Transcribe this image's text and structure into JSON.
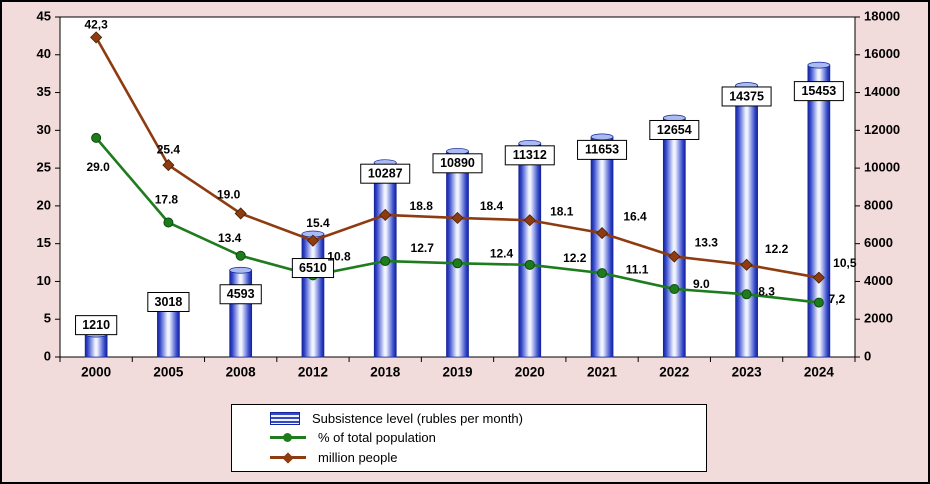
{
  "colors": {
    "background": "#F2DCDB",
    "plot_bg": "#FFFFFF",
    "bar": "#3347C9",
    "bar_edge": "#14249A",
    "bar_highlight": "#EFF3FF",
    "bar_cap": "#A9BBF0",
    "green_line": "#1E7B1E",
    "brown_line": "#8E3B10",
    "label_box_bg": "#FFFFFF",
    "text": "#000000"
  },
  "chart_data": {
    "type": "combo",
    "categories": [
      "2000",
      "2005",
      "2008",
      "2012",
      "2018",
      "2019",
      "2020",
      "2021",
      "2022",
      "2023",
      "2024"
    ],
    "series": [
      {
        "name": "Subsistence level (rubles per month)",
        "type": "bar",
        "axis": "right",
        "color": "#3347C9",
        "values": [
          1210,
          3018,
          4593,
          6510,
          10287,
          10890,
          11312,
          11653,
          12654,
          14375,
          15453
        ],
        "labels": [
          "1210",
          "3018",
          "4593",
          "6510",
          "10287",
          "10890",
          "11312",
          "11653",
          "12654",
          "14375",
          "15453"
        ]
      },
      {
        "name": "% of total population",
        "type": "line",
        "axis": "left",
        "marker": "circle",
        "color": "#1E7B1E",
        "values": [
          29.0,
          17.8,
          13.4,
          10.8,
          12.7,
          12.4,
          12.2,
          11.1,
          9.0,
          8.3,
          7.2
        ],
        "labels": [
          "29.0",
          "17.8",
          "13.4",
          "10.8",
          "12.7",
          "12.4",
          "12.2",
          "11.1",
          "9.0",
          "8.3",
          "7,2"
        ]
      },
      {
        "name": "million people",
        "type": "line",
        "axis": "left",
        "marker": "diamond",
        "color": "#8E3B10",
        "values": [
          42.3,
          25.4,
          19.0,
          15.4,
          18.8,
          18.4,
          18.1,
          16.4,
          13.3,
          12.2,
          10.5
        ],
        "labels": [
          "42,3",
          "25.4",
          "19.0",
          "15.4",
          "18.8",
          "18.4",
          "18.1",
          "16.4",
          "13.3",
          "12.2",
          "10,5"
        ]
      }
    ],
    "left_axis": {
      "min": 0,
      "max": 45,
      "step": 5,
      "tick_labels": [
        "0",
        "5",
        "10",
        "15",
        "20",
        "25",
        "30",
        "35",
        "40",
        "45"
      ]
    },
    "right_axis": {
      "min": 0,
      "max": 18000,
      "step": 2000,
      "tick_labels": [
        "0",
        "2000",
        "4000",
        "6000",
        "8000",
        "10000",
        "12000",
        "14000",
        "16000",
        "18000"
      ]
    },
    "grid": false,
    "legend_position": "bottom"
  }
}
